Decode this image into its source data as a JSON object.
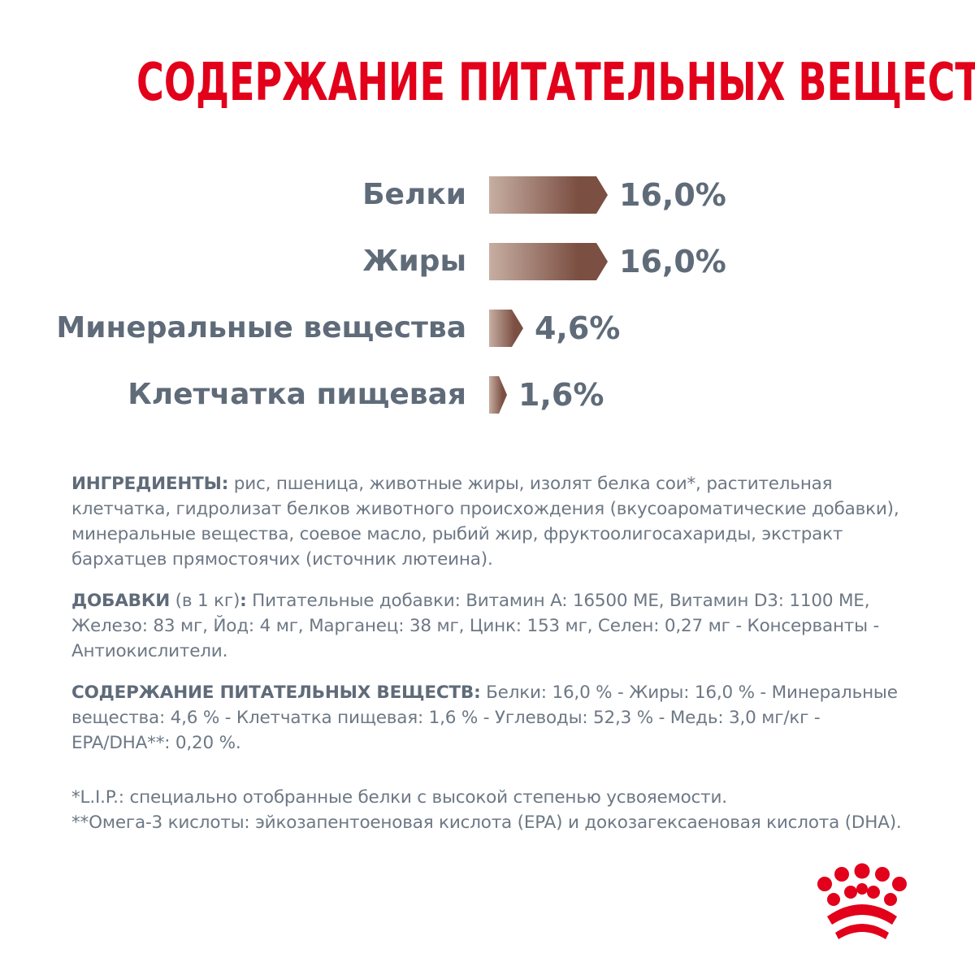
{
  "title": "СОДЕРЖАНИЕ ПИТАТЕЛЬНЫХ ВЕЩЕСТВ",
  "chart_data": {
    "type": "bar",
    "orientation": "horizontal",
    "categories": [
      "Белки",
      "Жиры",
      "Минеральные вещества",
      "Клетчатка пищевая"
    ],
    "values": [
      16.0,
      16.0,
      4.6,
      1.6
    ],
    "value_labels": [
      "16,0%",
      "16,0%",
      "4,6%",
      "1,6%"
    ],
    "bar_color_start": "#c7aea2",
    "bar_color_end": "#7b4f42"
  },
  "ingredients": {
    "label": "ИНГРЕДИЕНТЫ:",
    "text": " рис, пшеница, животные жиры, изолят белка сои*, растительная клетчатка, гидролизат белков животного происхождения (вкусоароматические добавки), минеральные вещества, соевое масло, рыбий жир, фруктоолигосахариды, экстракт бархатцев прямостоячих (источник лютеина)."
  },
  "additives": {
    "label": "ДОБАВКИ",
    "unit": " (в 1 кг)",
    "colon": ":",
    "text": " Питательные добавки: Витамин A: 16500 МЕ, Витамин D3: 1100 МЕ, Железо: 83 мг, Йод: 4 мг, Марганец: 38 мг, Цинк: 153 мг, Селен: 0,27 мг - Консерванты - Антиокислители."
  },
  "nutrients": {
    "label": "СОДЕРЖАНИЕ ПИТАТЕЛЬНЫХ ВЕЩЕСТВ:",
    "text": " Белки: 16,0 % - Жиры: 16,0 % - Минеральные вещества: 4,6 % - Клетчатка пищевая: 1,6 % - Углеводы: 52,3 % - Медь: 3,0 мг/кг - EPA/DHA**: 0,20 %."
  },
  "footnotes": [
    "*L.I.P.: специально отобранные белки с высокой степенью усвояемости.",
    "**Омега-3 кислоты: эйкозапентоеновая кислота (EPA) и докозагексаеновая кислота (DHA)."
  ],
  "logo": {
    "icon": "royal-canin-crown-icon",
    "color": "#e2001a"
  }
}
